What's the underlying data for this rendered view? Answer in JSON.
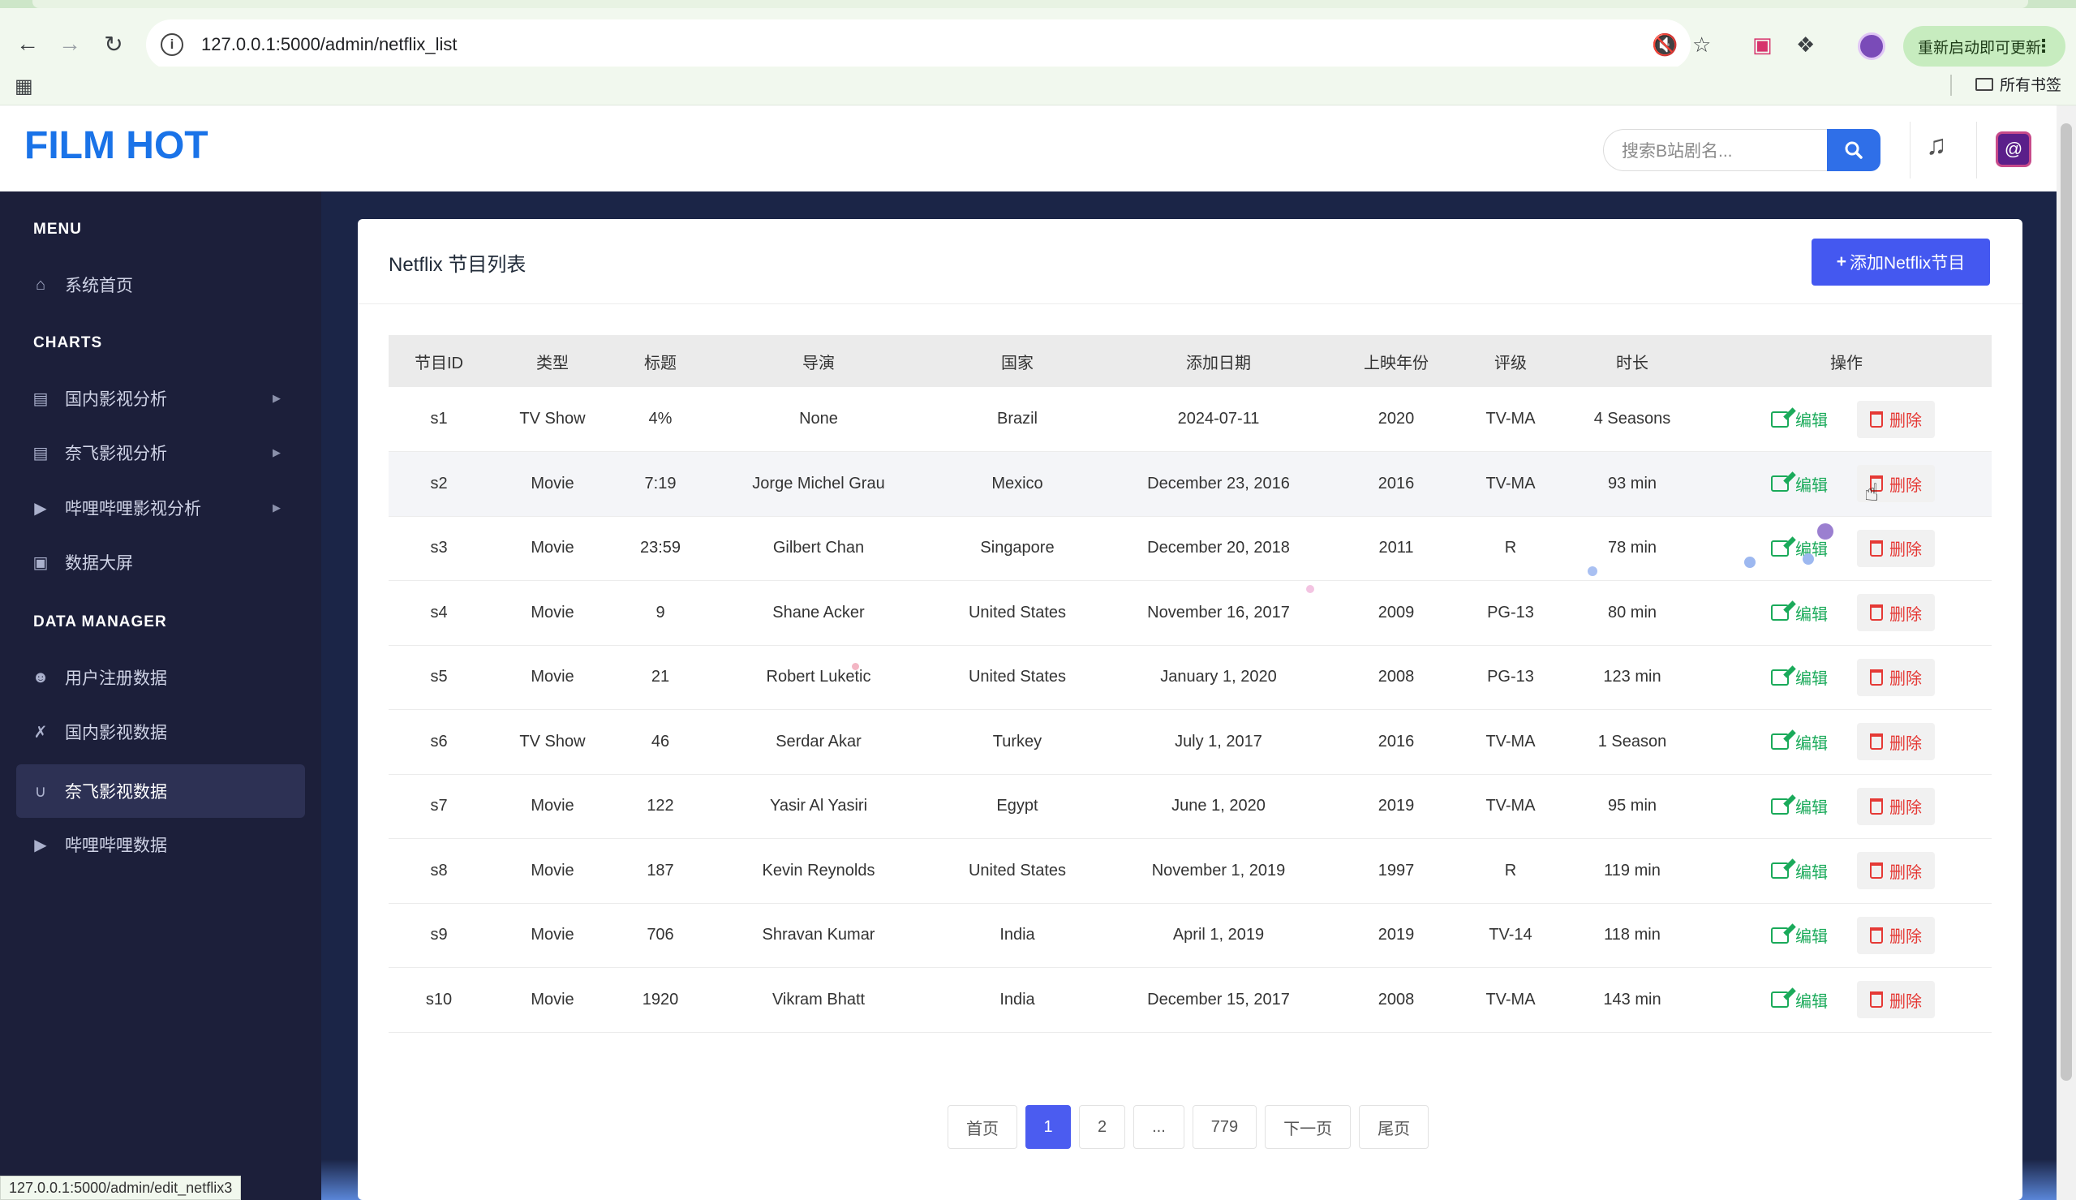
{
  "browser": {
    "url": "127.0.0.1:5000/admin/netflix_list",
    "restart_label": "重新启动即可更新",
    "bookmarks_label": "所有书签",
    "status_url": "127.0.0.1:5000/admin/edit_netflix3"
  },
  "header": {
    "logo": "FILM HOT",
    "search_placeholder": "搜索B站剧名..."
  },
  "sidebar": {
    "sections": [
      {
        "title": "MENU",
        "items": [
          {
            "label": "系统首页",
            "icon": "home-icon"
          }
        ]
      },
      {
        "title": "CHARTS",
        "items": [
          {
            "label": "国内影视分析",
            "icon": "film-icon"
          },
          {
            "label": "奈飞影视分析",
            "icon": "film-icon"
          },
          {
            "label": "哔哩哔哩影视分析",
            "icon": "play-icon"
          },
          {
            "label": "数据大屏",
            "icon": "monitor-icon"
          }
        ]
      },
      {
        "title": "DATA MANAGER",
        "items": [
          {
            "label": "用户注册数据",
            "icon": "users-icon"
          },
          {
            "label": "国内影视数据",
            "icon": "random-icon"
          },
          {
            "label": "奈飞影视数据",
            "icon": "magnet-icon",
            "active": true
          },
          {
            "label": "哔哩哔哩数据",
            "icon": "play-icon"
          }
        ]
      }
    ]
  },
  "main": {
    "title": "Netflix 节目列表",
    "add_button": "添加Netflix节目",
    "columns": [
      "节目ID",
      "类型",
      "标题",
      "导演",
      "国家",
      "添加日期",
      "上映年份",
      "评级",
      "时长",
      "操作"
    ],
    "edit_label": "编辑",
    "delete_label": "删除",
    "rows": [
      [
        "s1",
        "TV Show",
        "4%",
        "None",
        "Brazil",
        "2024-07-11",
        "2020",
        "TV-MA",
        "4 Seasons"
      ],
      [
        "s2",
        "Movie",
        "7:19",
        "Jorge Michel Grau",
        "Mexico",
        "December 23, 2016",
        "2016",
        "TV-MA",
        "93 min"
      ],
      [
        "s3",
        "Movie",
        "23:59",
        "Gilbert Chan",
        "Singapore",
        "December 20, 2018",
        "2011",
        "R",
        "78 min"
      ],
      [
        "s4",
        "Movie",
        "9",
        "Shane Acker",
        "United States",
        "November 16, 2017",
        "2009",
        "PG-13",
        "80 min"
      ],
      [
        "s5",
        "Movie",
        "21",
        "Robert Luketic",
        "United States",
        "January 1, 2020",
        "2008",
        "PG-13",
        "123 min"
      ],
      [
        "s6",
        "TV Show",
        "46",
        "Serdar Akar",
        "Turkey",
        "July 1, 2017",
        "2016",
        "TV-MA",
        "1 Season"
      ],
      [
        "s7",
        "Movie",
        "122",
        "Yasir Al Yasiri",
        "Egypt",
        "June 1, 2020",
        "2019",
        "TV-MA",
        "95 min"
      ],
      [
        "s8",
        "Movie",
        "187",
        "Kevin Reynolds",
        "United States",
        "November 1, 2019",
        "1997",
        "R",
        "119 min"
      ],
      [
        "s9",
        "Movie",
        "706",
        "Shravan Kumar",
        "India",
        "April 1, 2019",
        "2019",
        "TV-14",
        "118 min"
      ],
      [
        "s10",
        "Movie",
        "1920",
        "Vikram Bhatt",
        "India",
        "December 15, 2017",
        "2008",
        "TV-MA",
        "143 min"
      ]
    ],
    "pagination": [
      "首页",
      "1",
      "2",
      "...",
      "779",
      "下一页",
      "尾页"
    ],
    "current_page": "1"
  },
  "colors": {
    "accent": "#4458f0",
    "sidebar": "#1c1f3a",
    "edit": "#1aaa5a",
    "delete": "#e53935",
    "logo": "#1a73e8"
  }
}
